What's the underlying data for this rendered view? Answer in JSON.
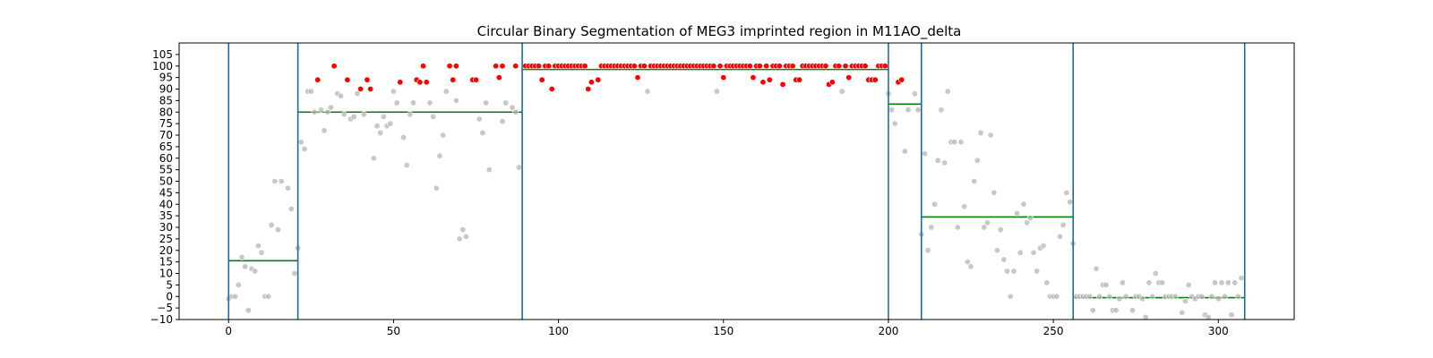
{
  "chart_data": {
    "type": "scatter",
    "title": "Circular Binary Segmentation of MEG3 imprinted region in M11AO_delta",
    "xlabel": "",
    "ylabel": "",
    "xlim": [
      -15,
      323
    ],
    "ylim": [
      -10,
      110
    ],
    "xticks": [
      0,
      50,
      100,
      150,
      200,
      250,
      300
    ],
    "yticks": [
      -10,
      -5,
      0,
      5,
      10,
      15,
      20,
      25,
      30,
      35,
      40,
      45,
      50,
      55,
      60,
      65,
      70,
      75,
      80,
      85,
      90,
      95,
      100,
      105
    ],
    "grid": false,
    "legend": "none",
    "colors": {
      "points_gray": "#b0b0b0",
      "points_red": "#ff0000",
      "segment_mean": "#008000",
      "breakpoint": "#1f6aa5"
    },
    "breakpoints": [
      0,
      21,
      89,
      200,
      210,
      256,
      308
    ],
    "segments": [
      {
        "x0": 0,
        "x1": 21,
        "mean": 15.5
      },
      {
        "x0": 21,
        "x1": 89,
        "mean": 80
      },
      {
        "x0": 89,
        "x1": 200,
        "mean": 98.5
      },
      {
        "x0": 200,
        "x1": 210,
        "mean": 83.5
      },
      {
        "x0": 210,
        "x1": 256,
        "mean": 34.5
      },
      {
        "x0": 256,
        "x1": 308,
        "mean": -0.5
      }
    ],
    "series": [
      {
        "color": "gray",
        "points": [
          [
            0,
            -1
          ],
          [
            1,
            0
          ],
          [
            2,
            0
          ],
          [
            3,
            5
          ],
          [
            4,
            17
          ],
          [
            5,
            13
          ],
          [
            6,
            -6
          ],
          [
            7,
            12
          ],
          [
            8,
            11
          ],
          [
            9,
            22
          ],
          [
            10,
            19
          ],
          [
            11,
            0
          ],
          [
            12,
            0
          ],
          [
            13,
            31
          ],
          [
            14,
            50
          ],
          [
            15,
            29
          ],
          [
            16,
            50
          ],
          [
            18,
            47
          ],
          [
            19,
            38
          ],
          [
            20,
            10
          ],
          [
            21,
            21
          ],
          [
            22,
            67
          ],
          [
            23,
            64
          ],
          [
            24,
            89
          ],
          [
            25,
            89
          ],
          [
            26,
            80
          ],
          [
            28,
            81
          ],
          [
            29,
            72
          ],
          [
            30,
            80
          ],
          [
            31,
            82
          ],
          [
            33,
            88
          ],
          [
            34,
            87
          ],
          [
            35,
            79
          ],
          [
            37,
            77
          ],
          [
            38,
            78
          ],
          [
            39,
            88
          ],
          [
            41,
            79
          ],
          [
            44,
            60
          ],
          [
            45,
            74
          ],
          [
            46,
            71
          ],
          [
            47,
            78
          ],
          [
            48,
            74
          ],
          [
            49,
            75
          ],
          [
            50,
            89
          ],
          [
            51,
            84
          ],
          [
            53,
            69
          ],
          [
            54,
            57
          ],
          [
            55,
            79
          ],
          [
            56,
            84
          ],
          [
            61,
            84
          ],
          [
            62,
            78
          ],
          [
            63,
            47
          ],
          [
            64,
            61
          ],
          [
            65,
            70
          ],
          [
            66,
            89
          ],
          [
            69,
            85
          ],
          [
            70,
            25
          ],
          [
            71,
            29
          ],
          [
            72,
            26
          ],
          [
            76,
            77
          ],
          [
            77,
            71
          ],
          [
            78,
            84
          ],
          [
            79,
            55
          ],
          [
            83,
            76
          ],
          [
            84,
            84
          ],
          [
            86,
            82
          ],
          [
            87,
            80
          ],
          [
            88,
            56
          ],
          [
            127,
            89
          ],
          [
            148,
            89
          ],
          [
            186,
            89
          ],
          [
            200,
            88
          ],
          [
            201,
            81
          ],
          [
            202,
            75
          ],
          [
            205,
            63
          ],
          [
            206,
            81
          ],
          [
            208,
            88
          ],
          [
            209,
            81
          ],
          [
            210,
            27
          ],
          [
            211,
            62
          ],
          [
            212,
            20
          ],
          [
            213,
            30
          ],
          [
            214,
            40
          ],
          [
            215,
            59
          ],
          [
            216,
            81
          ],
          [
            217,
            58
          ],
          [
            218,
            89
          ],
          [
            219,
            67
          ],
          [
            220,
            67
          ],
          [
            221,
            30
          ],
          [
            222,
            67
          ],
          [
            223,
            39
          ],
          [
            224,
            15
          ],
          [
            225,
            13
          ],
          [
            226,
            50
          ],
          [
            227,
            59
          ],
          [
            228,
            71
          ],
          [
            229,
            30
          ],
          [
            230,
            32
          ],
          [
            231,
            70
          ],
          [
            232,
            45
          ],
          [
            233,
            20
          ],
          [
            234,
            29
          ],
          [
            235,
            16
          ],
          [
            236,
            11
          ],
          [
            237,
            0
          ],
          [
            238,
            11
          ],
          [
            239,
            36
          ],
          [
            240,
            19
          ],
          [
            241,
            40
          ],
          [
            242,
            32
          ],
          [
            243,
            34
          ],
          [
            244,
            19
          ],
          [
            245,
            11
          ],
          [
            246,
            21
          ],
          [
            247,
            22
          ],
          [
            248,
            6
          ],
          [
            249,
            0
          ],
          [
            250,
            0
          ],
          [
            251,
            0
          ],
          [
            252,
            26
          ],
          [
            253,
            31
          ],
          [
            254,
            45
          ],
          [
            255,
            41
          ],
          [
            256,
            23
          ],
          [
            257,
            0
          ],
          [
            258,
            0
          ],
          [
            259,
            0
          ],
          [
            260,
            0
          ],
          [
            261,
            0
          ],
          [
            262,
            -6
          ],
          [
            263,
            12
          ],
          [
            264,
            0
          ],
          [
            265,
            5
          ],
          [
            266,
            5
          ],
          [
            267,
            0
          ],
          [
            268,
            -6
          ],
          [
            269,
            -6
          ],
          [
            270,
            -1
          ],
          [
            271,
            6
          ],
          [
            272,
            0
          ],
          [
            274,
            -6
          ],
          [
            275,
            0
          ],
          [
            276,
            0
          ],
          [
            277,
            -1
          ],
          [
            278,
            -9
          ],
          [
            279,
            6
          ],
          [
            280,
            0
          ],
          [
            281,
            10
          ],
          [
            282,
            6
          ],
          [
            283,
            6
          ],
          [
            284,
            0
          ],
          [
            285,
            0
          ],
          [
            286,
            0
          ],
          [
            287,
            0
          ],
          [
            289,
            -7
          ],
          [
            290,
            -2
          ],
          [
            291,
            5
          ],
          [
            292,
            0
          ],
          [
            293,
            -1
          ],
          [
            294,
            0
          ],
          [
            295,
            0
          ],
          [
            296,
            -8
          ],
          [
            297,
            -9
          ],
          [
            298,
            0
          ],
          [
            299,
            6
          ],
          [
            300,
            -1
          ],
          [
            301,
            6
          ],
          [
            302,
            0
          ],
          [
            303,
            6
          ],
          [
            304,
            -8
          ],
          [
            305,
            6
          ],
          [
            306,
            0
          ],
          [
            307,
            8
          ]
        ]
      },
      {
        "color": "red",
        "points": [
          [
            27,
            94
          ],
          [
            32,
            100
          ],
          [
            36,
            94
          ],
          [
            40,
            90
          ],
          [
            42,
            94
          ],
          [
            43,
            90
          ],
          [
            52,
            93
          ],
          [
            57,
            94
          ],
          [
            58,
            93
          ],
          [
            59,
            100
          ],
          [
            60,
            93
          ],
          [
            67,
            100
          ],
          [
            68,
            94
          ],
          [
            69,
            100
          ],
          [
            74,
            94
          ],
          [
            75,
            94
          ],
          [
            81,
            100
          ],
          [
            82,
            95
          ],
          [
            83,
            100
          ],
          [
            87,
            100
          ],
          [
            90,
            100
          ],
          [
            91,
            100
          ],
          [
            92,
            100
          ],
          [
            93,
            100
          ],
          [
            94,
            100
          ],
          [
            95,
            94
          ],
          [
            96,
            100
          ],
          [
            97,
            100
          ],
          [
            98,
            90
          ],
          [
            99,
            100
          ],
          [
            100,
            100
          ],
          [
            101,
            100
          ],
          [
            102,
            100
          ],
          [
            103,
            100
          ],
          [
            104,
            100
          ],
          [
            105,
            100
          ],
          [
            106,
            100
          ],
          [
            107,
            100
          ],
          [
            108,
            100
          ],
          [
            109,
            90
          ],
          [
            110,
            93
          ],
          [
            112,
            94
          ],
          [
            113,
            100
          ],
          [
            114,
            100
          ],
          [
            115,
            100
          ],
          [
            116,
            100
          ],
          [
            117,
            100
          ],
          [
            118,
            100
          ],
          [
            119,
            100
          ],
          [
            120,
            100
          ],
          [
            121,
            100
          ],
          [
            122,
            100
          ],
          [
            123,
            100
          ],
          [
            124,
            95
          ],
          [
            125,
            100
          ],
          [
            126,
            100
          ],
          [
            128,
            100
          ],
          [
            129,
            100
          ],
          [
            130,
            100
          ],
          [
            131,
            100
          ],
          [
            132,
            100
          ],
          [
            133,
            100
          ],
          [
            134,
            100
          ],
          [
            135,
            100
          ],
          [
            136,
            100
          ],
          [
            137,
            100
          ],
          [
            138,
            100
          ],
          [
            139,
            100
          ],
          [
            140,
            100
          ],
          [
            141,
            100
          ],
          [
            142,
            100
          ],
          [
            143,
            100
          ],
          [
            144,
            100
          ],
          [
            145,
            100
          ],
          [
            146,
            100
          ],
          [
            147,
            100
          ],
          [
            149,
            100
          ],
          [
            150,
            95
          ],
          [
            151,
            100
          ],
          [
            152,
            100
          ],
          [
            153,
            100
          ],
          [
            154,
            100
          ],
          [
            155,
            100
          ],
          [
            156,
            100
          ],
          [
            157,
            100
          ],
          [
            158,
            100
          ],
          [
            159,
            95
          ],
          [
            160,
            100
          ],
          [
            161,
            100
          ],
          [
            162,
            93
          ],
          [
            163,
            100
          ],
          [
            164,
            94
          ],
          [
            165,
            100
          ],
          [
            166,
            100
          ],
          [
            167,
            100
          ],
          [
            168,
            92
          ],
          [
            169,
            100
          ],
          [
            170,
            100
          ],
          [
            171,
            100
          ],
          [
            172,
            94
          ],
          [
            173,
            94
          ],
          [
            174,
            100
          ],
          [
            175,
            100
          ],
          [
            176,
            100
          ],
          [
            177,
            100
          ],
          [
            178,
            100
          ],
          [
            179,
            100
          ],
          [
            180,
            100
          ],
          [
            181,
            100
          ],
          [
            182,
            92
          ],
          [
            183,
            93
          ],
          [
            184,
            100
          ],
          [
            185,
            100
          ],
          [
            187,
            100
          ],
          [
            188,
            95
          ],
          [
            189,
            100
          ],
          [
            190,
            100
          ],
          [
            191,
            100
          ],
          [
            192,
            100
          ],
          [
            193,
            100
          ],
          [
            194,
            94
          ],
          [
            195,
            94
          ],
          [
            196,
            94
          ],
          [
            197,
            100
          ],
          [
            198,
            100
          ],
          [
            199,
            100
          ],
          [
            203,
            93
          ],
          [
            204,
            94
          ]
        ]
      }
    ]
  }
}
